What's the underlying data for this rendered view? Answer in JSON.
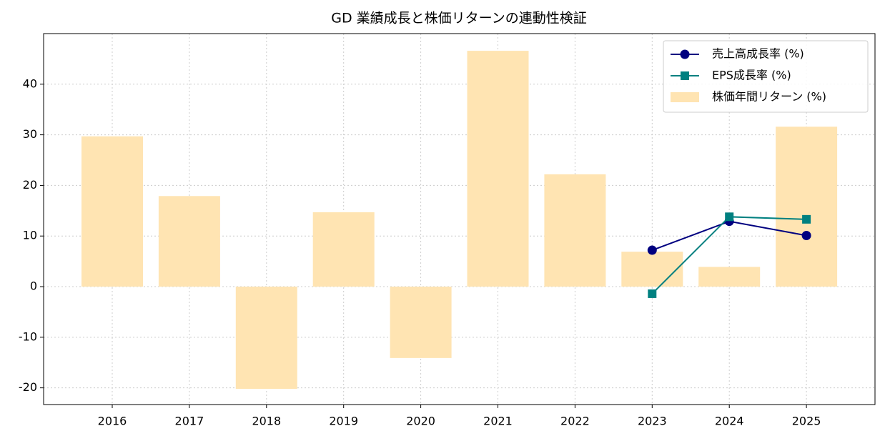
{
  "chart_data": {
    "type": "bar",
    "title": "GD 業績成長と株価リターンの連動性検証",
    "categories": [
      "2016",
      "2017",
      "2018",
      "2019",
      "2020",
      "2021",
      "2022",
      "2023",
      "2024",
      "2025"
    ],
    "series": [
      {
        "name": "売上高成長率 (%)",
        "type": "line",
        "marker": "circle",
        "color": "#000080",
        "values": [
          null,
          null,
          null,
          null,
          null,
          null,
          null,
          7.2,
          12.9,
          10.1
        ]
      },
      {
        "name": "EPS成長率 (%)",
        "type": "line",
        "marker": "square",
        "color": "#008080",
        "values": [
          null,
          null,
          null,
          null,
          null,
          null,
          null,
          -1.4,
          13.8,
          13.3
        ]
      },
      {
        "name": "株価年間リターン (%)",
        "type": "bar",
        "color": "#ffe4b2",
        "values": [
          29.7,
          17.9,
          -20.2,
          14.7,
          -14.1,
          46.6,
          22.2,
          6.9,
          3.9,
          31.6
        ]
      }
    ],
    "ylim": [
      -23.3,
      50.0
    ],
    "yticks": [
      -20,
      -10,
      0,
      10,
      20,
      30,
      40
    ],
    "grid": true,
    "legend": "upper right"
  }
}
